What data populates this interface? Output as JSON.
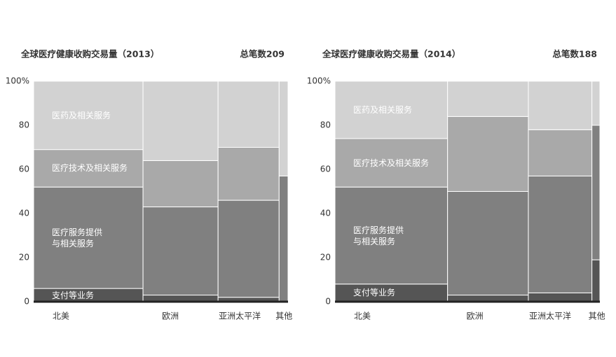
{
  "chart_data": [
    {
      "type": "mekko",
      "title": "全球医疗健康收购交易量（2013）",
      "subtitle": "总笔数209",
      "categories": [
        "北美",
        "欧洲",
        "亚洲太平洋",
        "其他"
      ],
      "widths": [
        43,
        29.5,
        24,
        3.5
      ],
      "series": [
        {
          "name": "支付等业务",
          "color": "#555555",
          "values": [
            6,
            3,
            2,
            0
          ]
        },
        {
          "name": "医疗服务提供与相关服务",
          "color": "#808080",
          "values": [
            46,
            40,
            44,
            57
          ]
        },
        {
          "name": "医疗技术及相关服务",
          "color": "#a9a9a9",
          "values": [
            17,
            21,
            24,
            0
          ]
        },
        {
          "name": "医药及相关服务",
          "color": "#d2d2d2",
          "values": [
            31,
            36,
            30,
            43
          ]
        }
      ],
      "ylim": [
        0,
        100
      ],
      "yticks": [
        0,
        20,
        40,
        60,
        80,
        {
          "value": 100,
          "label": "100%"
        }
      ]
    },
    {
      "type": "mekko",
      "title": "全球医疗健康收购交易量（2014）",
      "subtitle": "总笔数188",
      "categories": [
        "北美",
        "欧洲",
        "亚洲太平洋",
        "其他"
      ],
      "widths": [
        42.5,
        30.5,
        24,
        3
      ],
      "series": [
        {
          "name": "支付等业务",
          "color": "#555555",
          "values": [
            8,
            3,
            4,
            19
          ]
        },
        {
          "name": "医疗服务提供与相关服务",
          "color": "#808080",
          "values": [
            44,
            47,
            53,
            61
          ]
        },
        {
          "name": "医疗技术及相关服务",
          "color": "#a9a9a9",
          "values": [
            22,
            34,
            21,
            0
          ]
        },
        {
          "name": "医药及相关服务",
          "color": "#d2d2d2",
          "values": [
            26,
            16,
            22,
            20
          ]
        }
      ],
      "ylim": [
        0,
        100
      ],
      "yticks": [
        0,
        20,
        40,
        60,
        80,
        {
          "value": 100,
          "label": "100%"
        }
      ]
    }
  ]
}
